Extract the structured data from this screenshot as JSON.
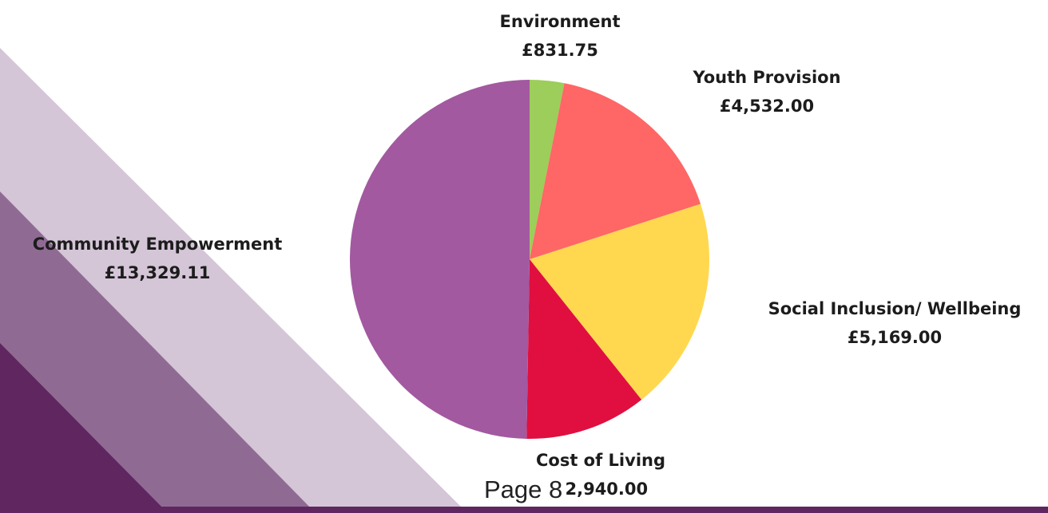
{
  "chart_data": {
    "type": "pie",
    "categories": [
      "Environment",
      "Youth Provision",
      "Social Inclusion/ Wellbeing",
      "Cost of Living",
      "Community Empowerment"
    ],
    "values": [
      831.75,
      4532,
      5169,
      2940,
      13329.11
    ],
    "value_labels": [
      "£831.75",
      "£4,532.00",
      "£5,169.00",
      "£2,940.00",
      "£13,329.11"
    ],
    "colors": [
      "#9dcd5a",
      "#ff6666",
      "#ffd84f",
      "#e00f3f",
      "#a259a0"
    ]
  },
  "footer": "Page 8"
}
